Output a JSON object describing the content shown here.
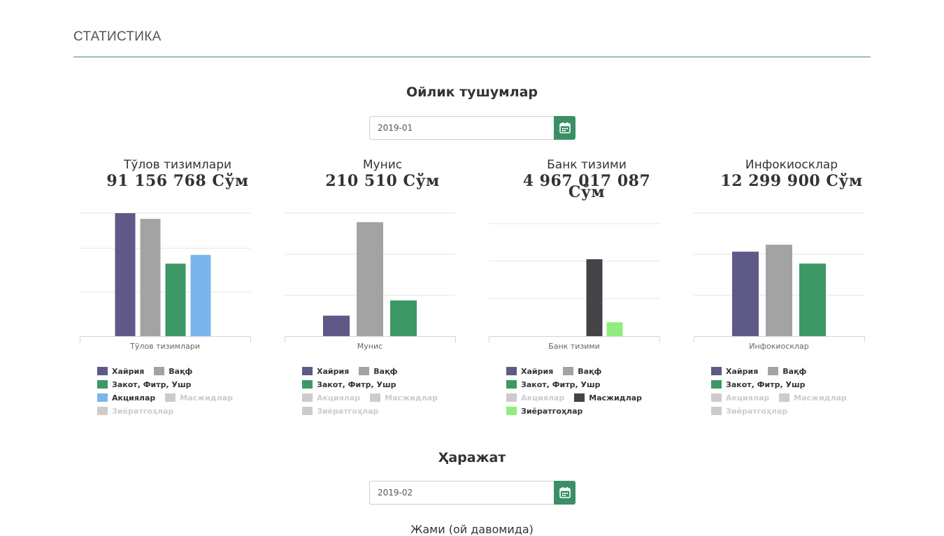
{
  "page": {
    "title": "СТАТИСТИКА"
  },
  "income": {
    "heading": "Ойлик тушумлар",
    "date_value": "2019-01"
  },
  "expense": {
    "heading": "Ҳаражат",
    "date_value": "2019-02",
    "total_label": "Жами (ой давомида)"
  },
  "series_colors": {
    "Хайрия": "#5e5987",
    "Вақф": "#a3a3a3",
    "Закот, Фитр, Ушр": "#3c9864",
    "Акциялар": "#7cb5ec",
    "Масжидлар": "#434348",
    "Зиёратгоҳлар": "#90ed7d"
  },
  "legend_hidden_color": "#cccccc",
  "chart_data": [
    {
      "type": "bar",
      "name": "Тўлов тизимлари",
      "amount": "91 156 768 Сўм",
      "categories": [
        "Тўлов тизимлари"
      ],
      "y_max": 28,
      "gridlines": [
        10,
        20
      ],
      "series": [
        {
          "name": "Хайрия",
          "values": [
            28
          ],
          "visible": true
        },
        {
          "name": "Вақф",
          "values": [
            26.7
          ],
          "visible": true
        },
        {
          "name": "Закот, Фитр, Ушр",
          "values": [
            16.5
          ],
          "visible": true
        },
        {
          "name": "Акциялар",
          "values": [
            18.5
          ],
          "visible": true
        },
        {
          "name": "Масжидлар",
          "values": [
            null
          ],
          "visible": false
        },
        {
          "name": "Зиёратгоҳлар",
          "values": [
            null
          ],
          "visible": false
        }
      ]
    },
    {
      "type": "bar",
      "name": "Мунис",
      "amount": "210 510 Сўм",
      "categories": [
        "Мунис"
      ],
      "y_max": 30,
      "gridlines": [
        10,
        20
      ],
      "series": [
        {
          "name": "Хайрия",
          "values": [
            5
          ],
          "visible": true
        },
        {
          "name": "Вақф",
          "values": [
            27.8
          ],
          "visible": true
        },
        {
          "name": "Закот, Фитр, Ушр",
          "values": [
            8.7
          ],
          "visible": true
        },
        {
          "name": "Акциялар",
          "values": [
            null
          ],
          "visible": false
        },
        {
          "name": "Масжидлар",
          "values": [
            null
          ],
          "visible": false
        },
        {
          "name": "Зиёратгоҳлар",
          "values": [
            null
          ],
          "visible": false
        }
      ]
    },
    {
      "type": "bar",
      "name": "Банк тизими",
      "amount": "4 967 017 087 Сўм",
      "categories": [
        "Банк тизими"
      ],
      "y_max": 30,
      "gridlines": [
        10,
        20
      ],
      "series": [
        {
          "name": "Хайрия",
          "values": [
            null
          ],
          "visible": true
        },
        {
          "name": "Вақф",
          "values": [
            null
          ],
          "visible": true
        },
        {
          "name": "Закот, Фитр, Ушр",
          "values": [
            null
          ],
          "visible": true
        },
        {
          "name": "Акциялар",
          "values": [
            null
          ],
          "visible": false
        },
        {
          "name": "Масжидлар",
          "values": [
            20.5
          ],
          "visible": true
        },
        {
          "name": "Зиёратгоҳлар",
          "values": [
            3.7
          ],
          "visible": true
        }
      ]
    },
    {
      "type": "bar",
      "name": "Инфокиосклар",
      "amount": "12 299 900 Сўм",
      "categories": [
        "Инфокиосклар"
      ],
      "y_max": 30,
      "gridlines": [
        10,
        20
      ],
      "series": [
        {
          "name": "Хайрия",
          "values": [
            20.6
          ],
          "visible": true
        },
        {
          "name": "Вақф",
          "values": [
            22.3
          ],
          "visible": true
        },
        {
          "name": "Закот, Фитр, Ушр",
          "values": [
            17.7
          ],
          "visible": true
        },
        {
          "name": "Акциялар",
          "values": [
            null
          ],
          "visible": false
        },
        {
          "name": "Масжидлар",
          "values": [
            null
          ],
          "visible": false
        },
        {
          "name": "Зиёратгоҳлар",
          "values": [
            null
          ],
          "visible": false
        }
      ]
    }
  ]
}
